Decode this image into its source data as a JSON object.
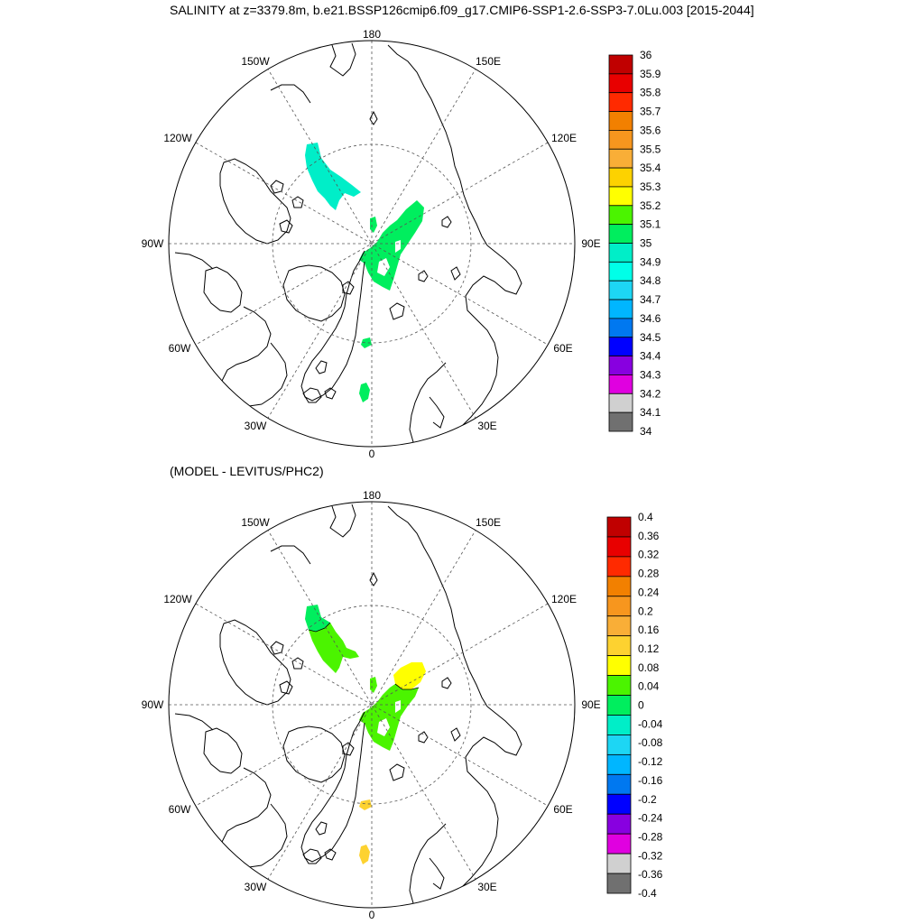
{
  "title": "SALINITY at z=3379.8m, b.e21.BSSP126cmip6.f09_g17.CMIP6-SSP1-2.6-SSP3-7.0Lu.003 [2015-2044]",
  "subtitle": "(MODEL - LEVITUS/PHC2)",
  "lon_labels": [
    "180",
    "150E",
    "120E",
    "90E",
    "60E",
    "30E",
    "0",
    "30W",
    "60W",
    "90W",
    "120W",
    "150W"
  ],
  "colors": {
    "coastline": "#000000",
    "grid": "#555555"
  },
  "colorbar_top": {
    "labels": [
      "36",
      "35.9",
      "35.8",
      "35.7",
      "35.6",
      "35.5",
      "35.4",
      "35.3",
      "35.2",
      "35.1",
      "35",
      "34.9",
      "34.8",
      "34.7",
      "34.6",
      "34.5",
      "34.4",
      "34.3",
      "34.2",
      "34.1",
      "34"
    ],
    "colors": [
      "#c00000",
      "#e80000",
      "#ff2a00",
      "#f28000",
      "#f7961e",
      "#f9ae37",
      "#fdd200",
      "#ffff00",
      "#4bf400",
      "#00ee5e",
      "#00eec8",
      "#00ffe8",
      "#1dd6f4",
      "#00b6ff",
      "#0078f0",
      "#0000ff",
      "#8800e0",
      "#e000e0",
      "#d0d0d0",
      "#707070"
    ]
  },
  "colorbar_bottom": {
    "labels": [
      "0.4",
      "0.36",
      "0.32",
      "0.28",
      "0.24",
      "0.2",
      "0.16",
      "0.12",
      "0.08",
      "0.04",
      "0",
      "-0.04",
      "-0.08",
      "-0.12",
      "-0.16",
      "-0.2",
      "-0.24",
      "-0.28",
      "-0.32",
      "-0.36",
      "-0.4"
    ],
    "colors": [
      "#c00000",
      "#e80000",
      "#ff2a00",
      "#f28000",
      "#f7961e",
      "#f9ae37",
      "#fdd230",
      "#ffff00",
      "#4bf400",
      "#00ee5e",
      "#00eec8",
      "#1dd6f4",
      "#00b6ff",
      "#0078f0",
      "#0000ff",
      "#8800e0",
      "#e000e0",
      "#d0d0d0",
      "#707070"
    ]
  },
  "panels": [
    {
      "id": "salinity",
      "regions": [
        {
          "name": "canada-basin-patch",
          "color": "#00eec8"
        },
        {
          "name": "eurasian-basin-patch",
          "color": "#00ee5e"
        },
        {
          "name": "fram-strait-patch",
          "color": "#00ee5e"
        },
        {
          "name": "greenland-sea-patch",
          "color": "#00ee5e"
        },
        {
          "name": "small-patch-north",
          "color": "#00ee5e"
        }
      ]
    },
    {
      "id": "difference",
      "regions": [
        {
          "name": "canada-basin-patch-a",
          "color": "#00ee5e"
        },
        {
          "name": "canada-basin-patch-b",
          "color": "#4bf400"
        },
        {
          "name": "eurasian-basin-patch",
          "color": "#4bf400"
        },
        {
          "name": "laptev-patch",
          "color": "#ffff00"
        },
        {
          "name": "fram-strait-patch",
          "color": "#fdd230"
        },
        {
          "name": "greenland-sea-patch",
          "color": "#fdd230"
        },
        {
          "name": "small-patch-north",
          "color": "#4bf400"
        }
      ]
    }
  ]
}
